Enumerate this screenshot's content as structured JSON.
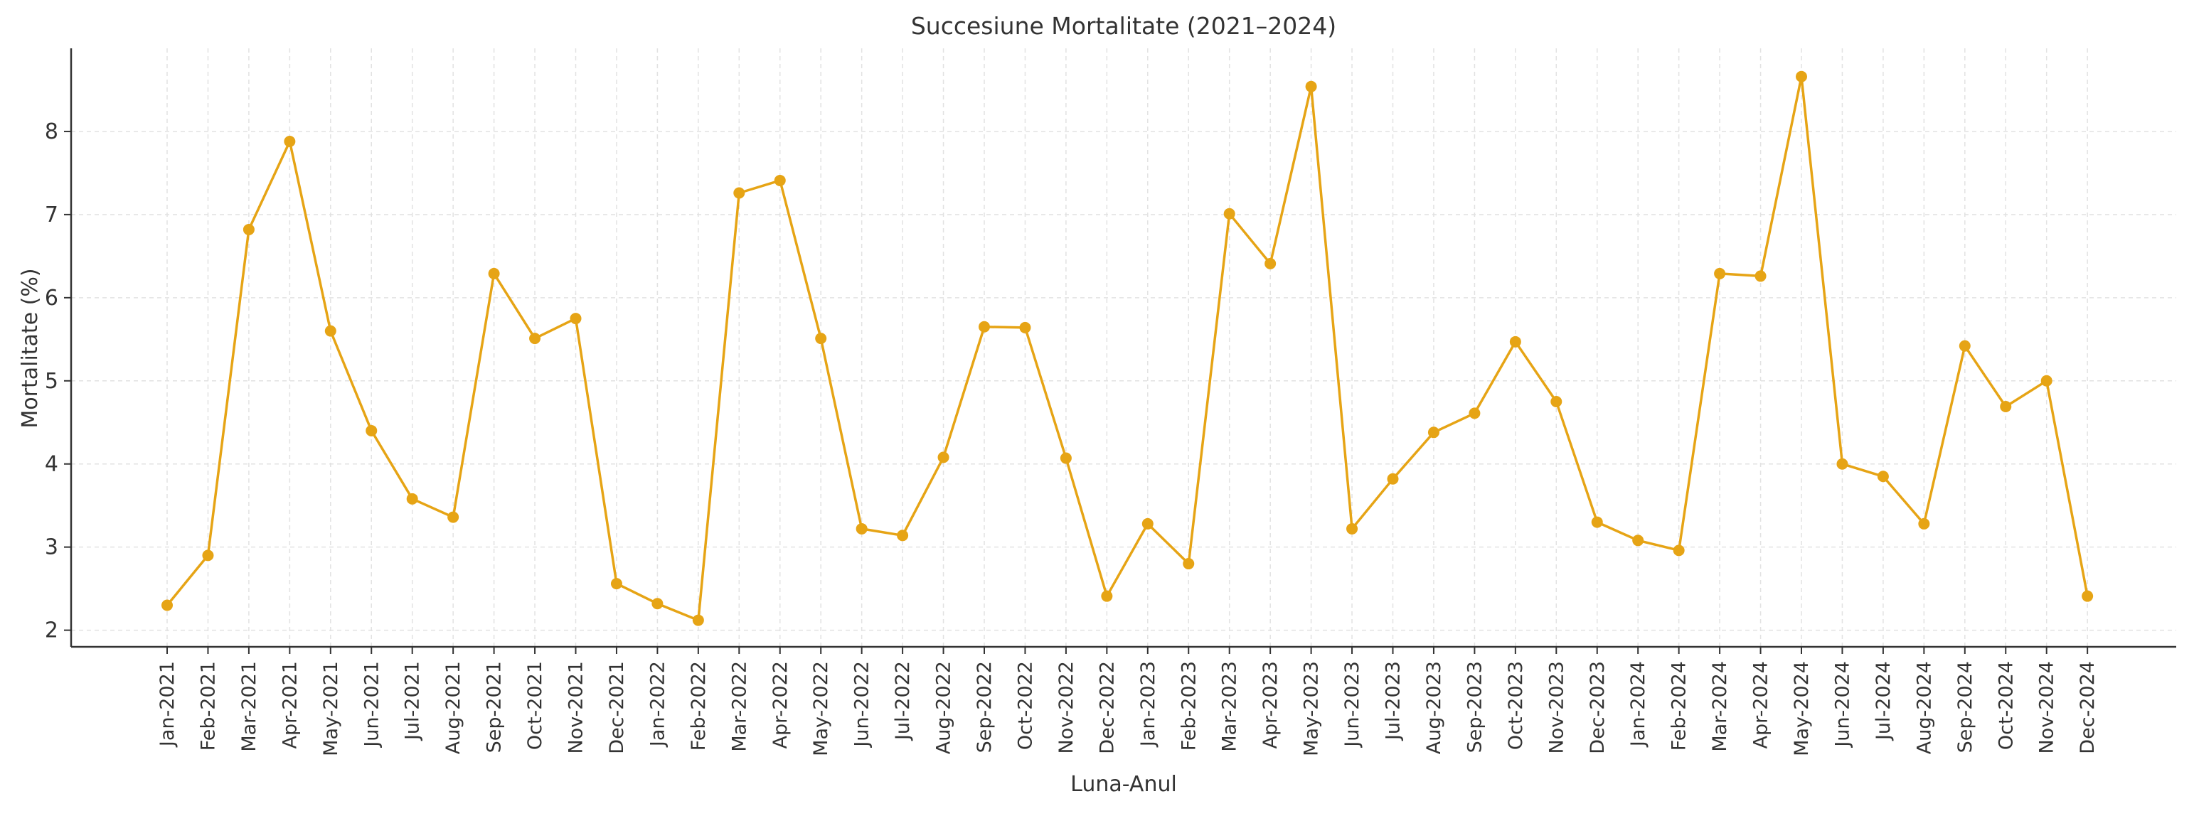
{
  "chart_data": {
    "type": "line",
    "title": "Succesiune Mortalitate (2021–2024)",
    "xlabel": "Luna-Anul",
    "ylabel": "Mortalitate (%)",
    "ylim": [
      1.8,
      9.0
    ],
    "yticks": [
      2,
      3,
      4,
      5,
      6,
      7,
      8
    ],
    "grid": true,
    "legend": "none",
    "color": "#E6A415",
    "categories": [
      "Jan-2021",
      "Feb-2021",
      "Mar-2021",
      "Apr-2021",
      "May-2021",
      "Jun-2021",
      "Jul-2021",
      "Aug-2021",
      "Sep-2021",
      "Oct-2021",
      "Nov-2021",
      "Dec-2021",
      "Jan-2022",
      "Feb-2022",
      "Mar-2022",
      "Apr-2022",
      "May-2022",
      "Jun-2022",
      "Jul-2022",
      "Aug-2022",
      "Sep-2022",
      "Oct-2022",
      "Nov-2022",
      "Dec-2022",
      "Jan-2023",
      "Feb-2023",
      "Mar-2023",
      "Apr-2023",
      "May-2023",
      "Jun-2023",
      "Jul-2023",
      "Aug-2023",
      "Sep-2023",
      "Oct-2023",
      "Nov-2023",
      "Dec-2023",
      "Jan-2024",
      "Feb-2024",
      "Mar-2024",
      "Apr-2024",
      "May-2024",
      "Jun-2024",
      "Jul-2024",
      "Aug-2024",
      "Sep-2024",
      "Oct-2024",
      "Nov-2024",
      "Dec-2024"
    ],
    "series": [
      {
        "values": [
          2.3,
          2.9,
          6.82,
          7.88,
          5.6,
          4.4,
          3.58,
          3.36,
          6.29,
          5.51,
          5.75,
          2.56,
          2.32,
          2.12,
          7.26,
          7.41,
          5.51,
          3.22,
          3.14,
          4.08,
          5.65,
          5.64,
          4.07,
          2.41,
          3.28,
          2.8,
          7.01,
          6.41,
          8.54,
          3.22,
          3.82,
          4.38,
          4.61,
          5.47,
          4.75,
          3.3,
          3.08,
          2.96,
          6.29,
          6.26,
          8.66,
          4.0,
          3.85,
          3.28,
          5.42,
          4.69,
          5.0,
          2.41
        ]
      }
    ]
  }
}
